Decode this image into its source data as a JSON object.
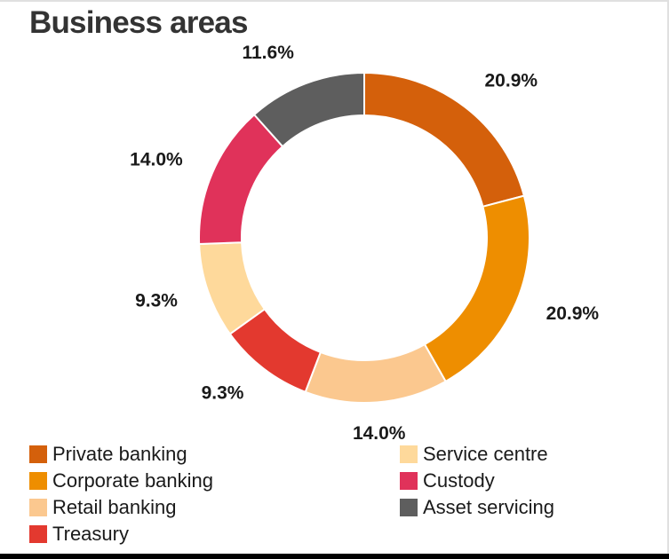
{
  "title": "Business areas",
  "chart_data": {
    "type": "pie",
    "donut": true,
    "slices": [
      {
        "name": "Private banking",
        "value": 20.9,
        "label": "20.9%",
        "color": "#d4600b"
      },
      {
        "name": "Corporate banking",
        "value": 20.9,
        "label": "20.9%",
        "color": "#ee8e00"
      },
      {
        "name": "Retail banking",
        "value": 14.0,
        "label": "14.0%",
        "color": "#fbc88f"
      },
      {
        "name": "Treasury",
        "value": 9.3,
        "label": "9.3%",
        "color": "#e3392f"
      },
      {
        "name": "Service centre",
        "value": 9.3,
        "label": "9.3%",
        "color": "#fed99b"
      },
      {
        "name": "Custody",
        "value": 14.0,
        "label": "14.0%",
        "color": "#e0325a"
      },
      {
        "name": "Asset servicing",
        "value": 11.6,
        "label": "11.6%",
        "color": "#5e5e5e"
      }
    ],
    "legend": {
      "position": "bottom",
      "columns": [
        [
          "Private banking",
          "Corporate banking",
          "Retail banking",
          "Treasury"
        ],
        [
          "Service centre",
          "Custody",
          "Asset servicing"
        ]
      ]
    }
  }
}
